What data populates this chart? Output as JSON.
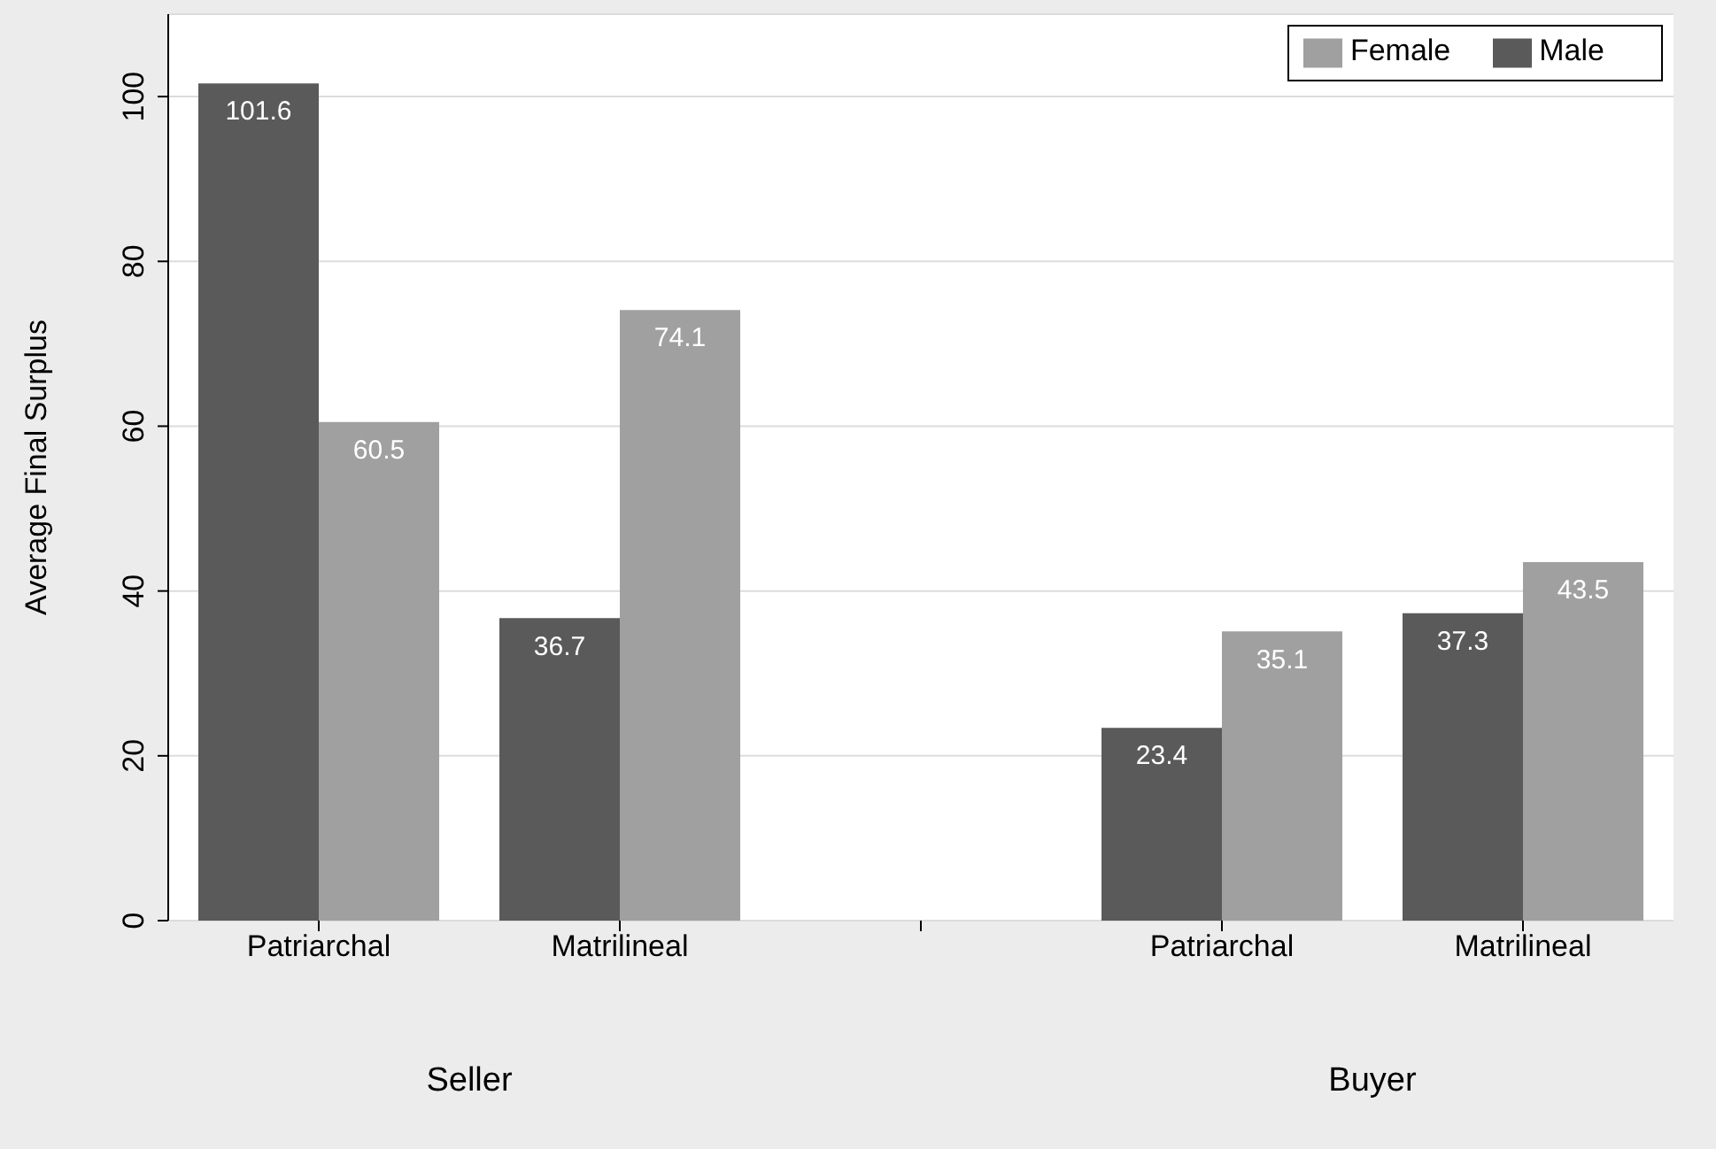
{
  "chart_data": {
    "type": "bar",
    "ylabel": "Average Final Surplus",
    "categories": [
      "Patriarchal",
      "Matrilineal",
      null,
      "Patriarchal",
      "Matrilineal"
    ],
    "series": [
      {
        "name": "Male",
        "color": "#5a5a5a",
        "values": [
          101.6,
          36.7,
          null,
          23.4,
          37.3
        ]
      },
      {
        "name": "Female",
        "color": "#a0a0a0",
        "values": [
          60.5,
          74.1,
          null,
          35.1,
          43.5
        ]
      }
    ],
    "ylim": [
      0,
      110
    ],
    "yticks": [
      0,
      20,
      40,
      60,
      80,
      100
    ],
    "grid": "y",
    "legend": "top right",
    "data_labels": true,
    "annotations": [
      "Seller",
      "Buyer"
    ]
  }
}
